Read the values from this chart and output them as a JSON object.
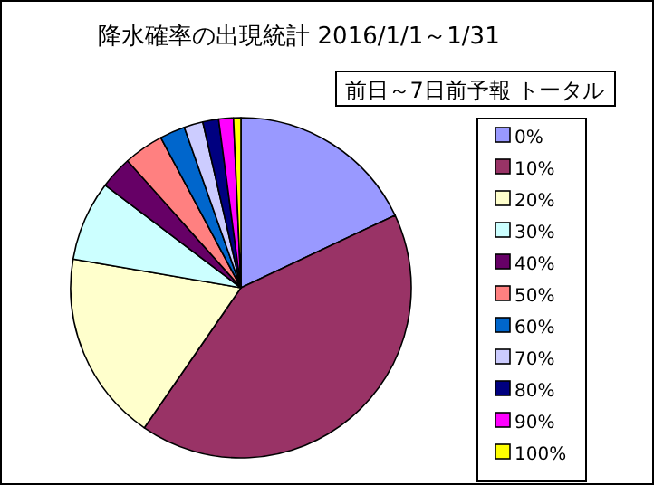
{
  "chart_data": {
    "type": "pie",
    "title": "降水確率の出現統計 2016/1/1～1/31",
    "subtitle": "前日～7日前予報 トータル",
    "categories": [
      "0%",
      "10%",
      "20%",
      "30%",
      "40%",
      "50%",
      "60%",
      "70%",
      "80%",
      "90%",
      "100%"
    ],
    "values": [
      18.0,
      41.6,
      18.1,
      7.6,
      3.1,
      3.8,
      2.4,
      1.8,
      1.5,
      1.4,
      0.7
    ],
    "colors": [
      "#9999ff",
      "#993366",
      "#ffffcc",
      "#ccffff",
      "#660066",
      "#ff8080",
      "#0066cc",
      "#ccccff",
      "#000080",
      "#ff00ff",
      "#ffff00"
    ],
    "legend": "right"
  }
}
